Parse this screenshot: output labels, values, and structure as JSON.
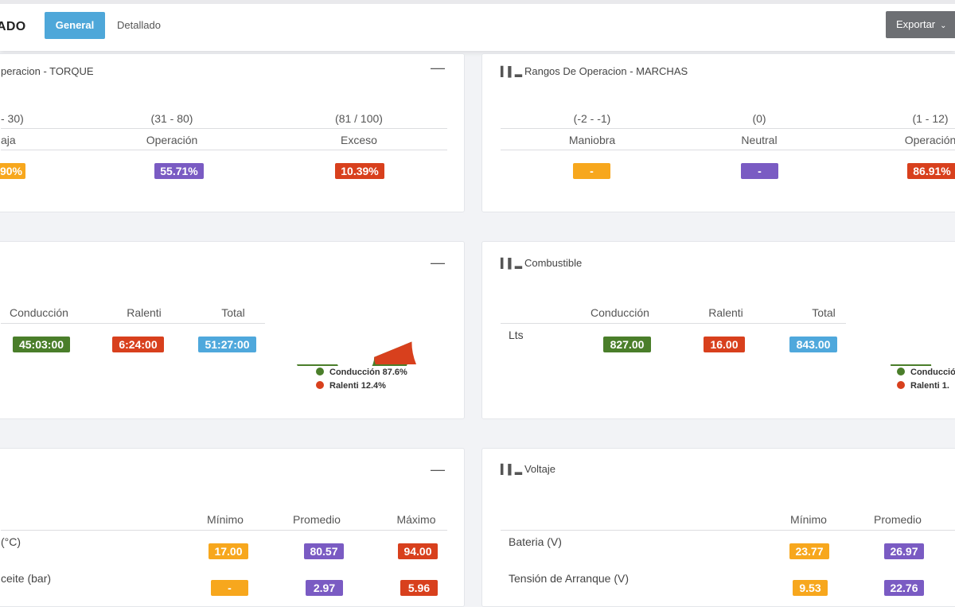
{
  "header": {
    "title": "ADO",
    "tabs": [
      "General",
      "Detallado"
    ],
    "export_label": "Exportar"
  },
  "torque": {
    "title": "peracion - TORQUE",
    "ranges": [
      "- 30)",
      "(31 - 80)",
      "(81 / 100)"
    ],
    "labels": [
      "aja",
      "Operación",
      "Exceso"
    ],
    "values": [
      "90%",
      "55.71%",
      "10.39%"
    ]
  },
  "marchas": {
    "title": "Rangos De Operacion - MARCHAS",
    "ranges": [
      "(-2 - -1)",
      "(0)",
      "(1 - 12)"
    ],
    "labels": [
      "Maniobra",
      "Neutral",
      "Operación"
    ],
    "values": [
      "-",
      "-",
      "86.91%"
    ]
  },
  "tiempo": {
    "headers": [
      "Conducción",
      "Ralenti",
      "Total"
    ],
    "values": [
      "45:03:00",
      "6:24:00",
      "51:27:00"
    ],
    "legend": [
      "Conducción 87.6%",
      "Ralenti 12.4%"
    ],
    "chart_data": {
      "type": "pie",
      "categories": [
        "Conducción",
        "Ralenti"
      ],
      "values": [
        87.6,
        12.4
      ]
    }
  },
  "combustible": {
    "title": "Combustible",
    "headers": [
      "Conducción",
      "Ralenti",
      "Total"
    ],
    "row_label": "Lts",
    "values": [
      "827.00",
      "16.00",
      "843.00"
    ],
    "legend": [
      "Conducción",
      "Ralenti 1."
    ]
  },
  "temperatura": {
    "headers": [
      "Mínimo",
      "Promedio",
      "Máximo"
    ],
    "rows": [
      {
        "label": "(°C)",
        "values": [
          "17.00",
          "80.57",
          "94.00"
        ]
      },
      {
        "label": "ceite (bar)",
        "values": [
          "-",
          "2.97",
          "5.96"
        ]
      }
    ]
  },
  "voltaje": {
    "title": "Voltaje",
    "headers": [
      "Mínimo",
      "Promedio"
    ],
    "rows": [
      {
        "label": "Bateria (V)",
        "values": [
          "23.77",
          "26.97"
        ]
      },
      {
        "label": "Tensión de Arranque (V)",
        "values": [
          "9.53",
          "22.76"
        ]
      }
    ]
  },
  "colors": {
    "green": "#4a7e2a",
    "red": "#d8401d",
    "yellow": "#f7a71d",
    "purple": "#7a5bc3",
    "blue": "#4fa8dc"
  }
}
